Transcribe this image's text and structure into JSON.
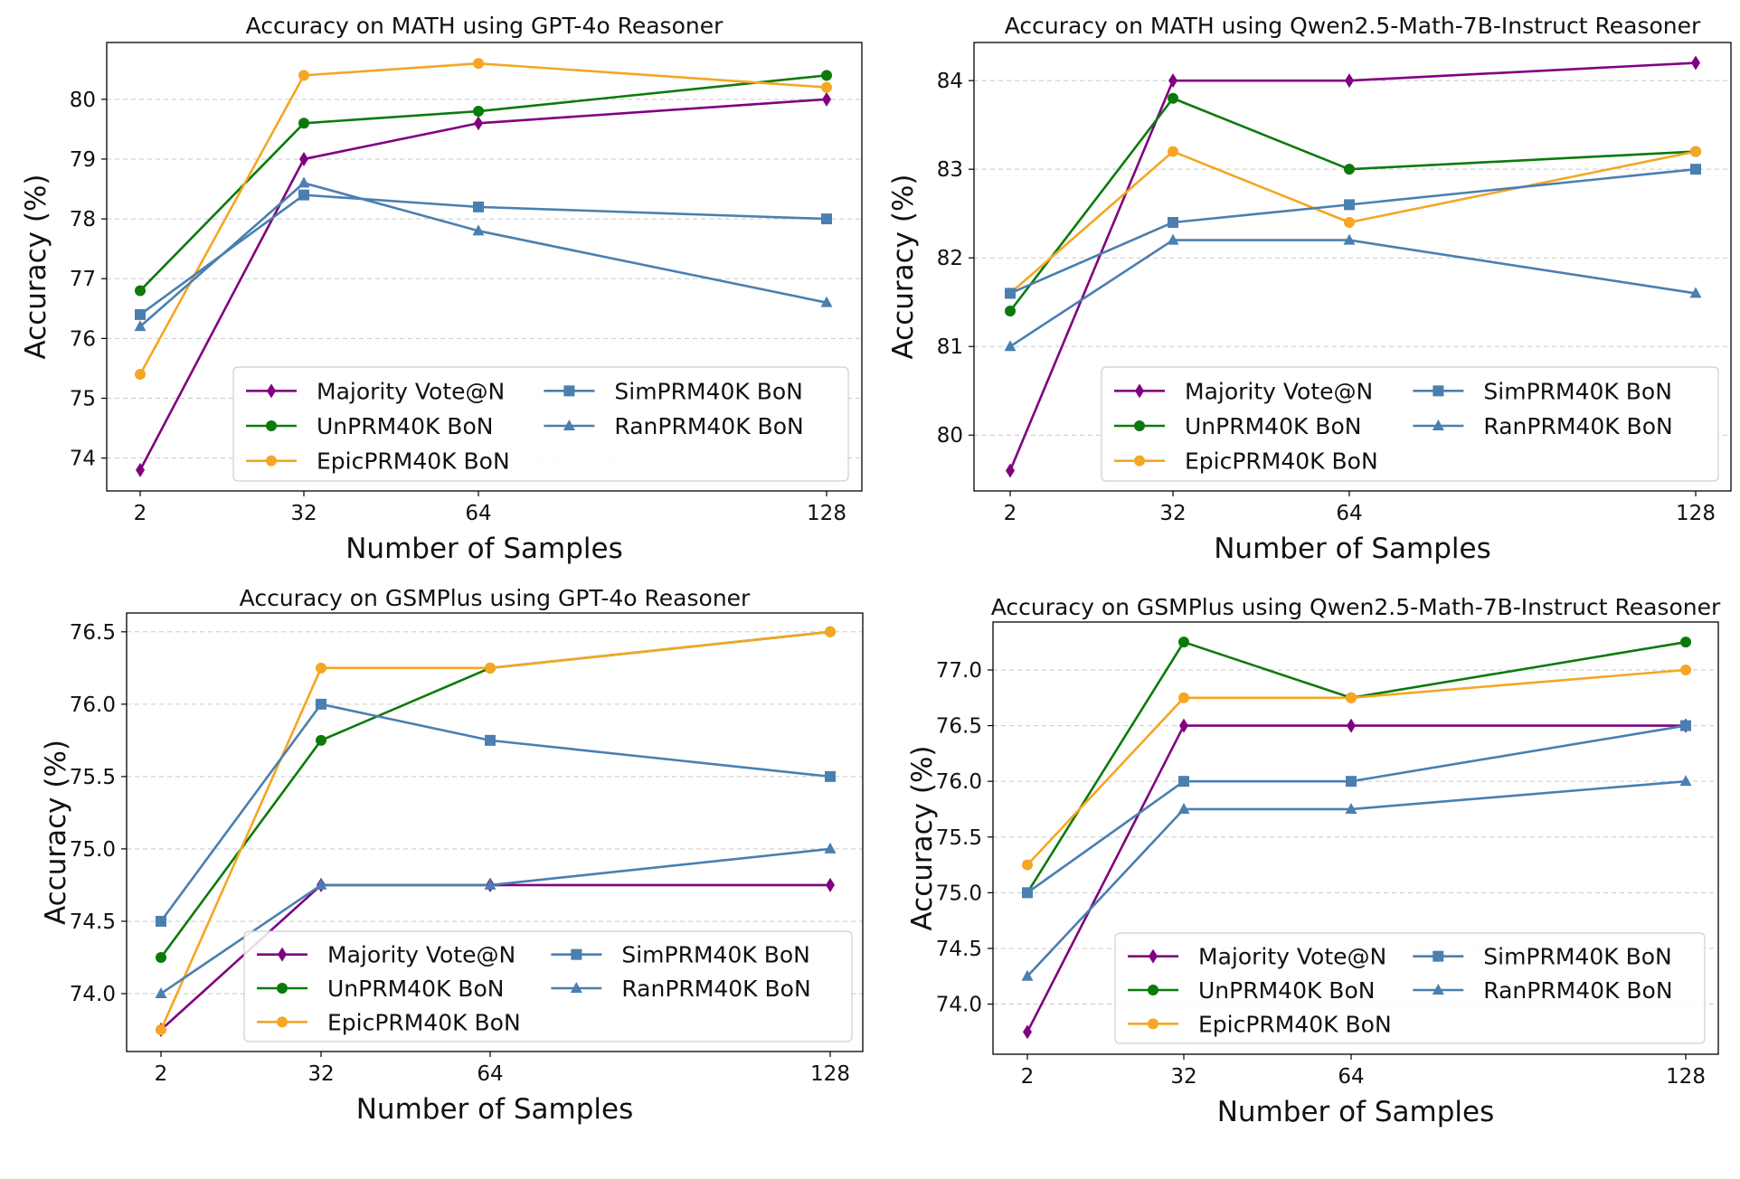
{
  "legend_labels": {
    "mv": "Majority Vote@N",
    "un": "UnPRM40K BoN",
    "epic": "EpicPRM40K BoN",
    "sim": "SimPRM40K BoN",
    "ran": "RanPRM40K BoN"
  },
  "colors": {
    "mv": "#800080",
    "un": "#0b7a0b",
    "epic": "#f5a623",
    "sim": "#4a7fb0",
    "ran": "#4a7fb0"
  },
  "chart_data": [
    {
      "type": "line",
      "title": "Accuracy on MATH using GPT-4o Reasoner",
      "xlabel": "Number of Samples",
      "ylabel": "Accuracy (%)",
      "x": [
        2,
        32,
        64,
        128
      ],
      "xticks": [
        "2",
        "32",
        "64",
        "128"
      ],
      "ylim": [
        73.45,
        80.95
      ],
      "yticks": [
        "74",
        "75",
        "76",
        "77",
        "78",
        "79",
        "80"
      ],
      "grid": true,
      "legend_position": "lower-right",
      "series": [
        {
          "key": "mv",
          "name": "Majority Vote@N",
          "marker": "diamond",
          "values": [
            73.8,
            79.0,
            79.6,
            80.0
          ]
        },
        {
          "key": "un",
          "name": "UnPRM40K BoN",
          "marker": "circle",
          "values": [
            76.8,
            79.6,
            79.8,
            80.4
          ]
        },
        {
          "key": "epic",
          "name": "EpicPRM40K BoN",
          "marker": "circle",
          "values": [
            75.4,
            80.4,
            80.6,
            80.2
          ]
        },
        {
          "key": "sim",
          "name": "SimPRM40K BoN",
          "marker": "square",
          "values": [
            76.4,
            78.4,
            78.2,
            78.0
          ]
        },
        {
          "key": "ran",
          "name": "RanPRM40K BoN",
          "marker": "triangle",
          "values": [
            76.2,
            78.6,
            77.8,
            76.6
          ]
        }
      ]
    },
    {
      "type": "line",
      "title": "Accuracy on MATH using Qwen2.5-Math-7B-Instruct Reasoner",
      "xlabel": "Number of Samples",
      "ylabel": "Accuracy (%)",
      "x": [
        2,
        32,
        64,
        128
      ],
      "xticks": [
        "2",
        "32",
        "64",
        "128"
      ],
      "ylim": [
        79.37,
        84.43
      ],
      "yticks": [
        "80",
        "81",
        "82",
        "83",
        "84"
      ],
      "grid": true,
      "legend_position": "lower-right",
      "series": [
        {
          "key": "mv",
          "name": "Majority Vote@N",
          "marker": "diamond",
          "values": [
            79.6,
            84.0,
            84.0,
            84.2
          ]
        },
        {
          "key": "un",
          "name": "UnPRM40K BoN",
          "marker": "circle",
          "values": [
            81.4,
            83.8,
            83.0,
            83.2
          ]
        },
        {
          "key": "epic",
          "name": "EpicPRM40K BoN",
          "marker": "circle",
          "values": [
            81.6,
            83.2,
            82.4,
            83.2
          ]
        },
        {
          "key": "sim",
          "name": "SimPRM40K BoN",
          "marker": "square",
          "values": [
            81.6,
            82.4,
            82.6,
            83.0
          ]
        },
        {
          "key": "ran",
          "name": "RanPRM40K BoN",
          "marker": "triangle",
          "values": [
            81.0,
            82.2,
            82.2,
            81.6
          ]
        }
      ]
    },
    {
      "type": "line",
      "title": "Accuracy on GSMPlus using GPT-4o Reasoner",
      "xlabel": "Number of Samples",
      "ylabel": "Accuracy (%)",
      "x": [
        2,
        32,
        64,
        128
      ],
      "xticks": [
        "2",
        "32",
        "64",
        "128"
      ],
      "ylim": [
        73.6,
        76.63
      ],
      "yticks": [
        "74.0",
        "74.5",
        "75.0",
        "75.5",
        "76.0",
        "76.5"
      ],
      "grid": true,
      "legend_position": "lower-right",
      "series": [
        {
          "key": "mv",
          "name": "Majority Vote@N",
          "marker": "diamond",
          "values": [
            73.75,
            74.75,
            74.75,
            74.75
          ]
        },
        {
          "key": "un",
          "name": "UnPRM40K BoN",
          "marker": "circle",
          "values": [
            74.25,
            75.75,
            76.25,
            76.5
          ]
        },
        {
          "key": "epic",
          "name": "EpicPRM40K BoN",
          "marker": "circle",
          "values": [
            73.75,
            76.25,
            76.25,
            76.5
          ]
        },
        {
          "key": "sim",
          "name": "SimPRM40K BoN",
          "marker": "square",
          "values": [
            74.5,
            76.0,
            75.75,
            75.5
          ]
        },
        {
          "key": "ran",
          "name": "RanPRM40K BoN",
          "marker": "triangle",
          "values": [
            74.0,
            74.75,
            74.75,
            75.0
          ]
        }
      ]
    },
    {
      "type": "line",
      "title": "Accuracy on GSMPlus using Qwen2.5-Math-7B-Instruct Reasoner",
      "xlabel": "Number of Samples",
      "ylabel": "Accuracy (%)",
      "x": [
        2,
        32,
        64,
        128
      ],
      "xticks": [
        "2",
        "32",
        "64",
        "128"
      ],
      "ylim": [
        73.55,
        77.43
      ],
      "yticks": [
        "74.0",
        "74.5",
        "75.0",
        "75.5",
        "76.0",
        "76.5",
        "77.0"
      ],
      "grid": true,
      "legend_position": "lower-right",
      "series": [
        {
          "key": "mv",
          "name": "Majority Vote@N",
          "marker": "diamond",
          "values": [
            73.75,
            76.5,
            76.5,
            76.5
          ]
        },
        {
          "key": "un",
          "name": "UnPRM40K BoN",
          "marker": "circle",
          "values": [
            75.0,
            77.25,
            76.75,
            77.25
          ]
        },
        {
          "key": "epic",
          "name": "EpicPRM40K BoN",
          "marker": "circle",
          "values": [
            75.25,
            76.75,
            76.75,
            77.0
          ]
        },
        {
          "key": "sim",
          "name": "SimPRM40K BoN",
          "marker": "square",
          "values": [
            75.0,
            76.0,
            76.0,
            76.5
          ]
        },
        {
          "key": "ran",
          "name": "RanPRM40K BoN",
          "marker": "triangle",
          "values": [
            74.25,
            75.75,
            75.75,
            76.0
          ]
        }
      ]
    }
  ]
}
